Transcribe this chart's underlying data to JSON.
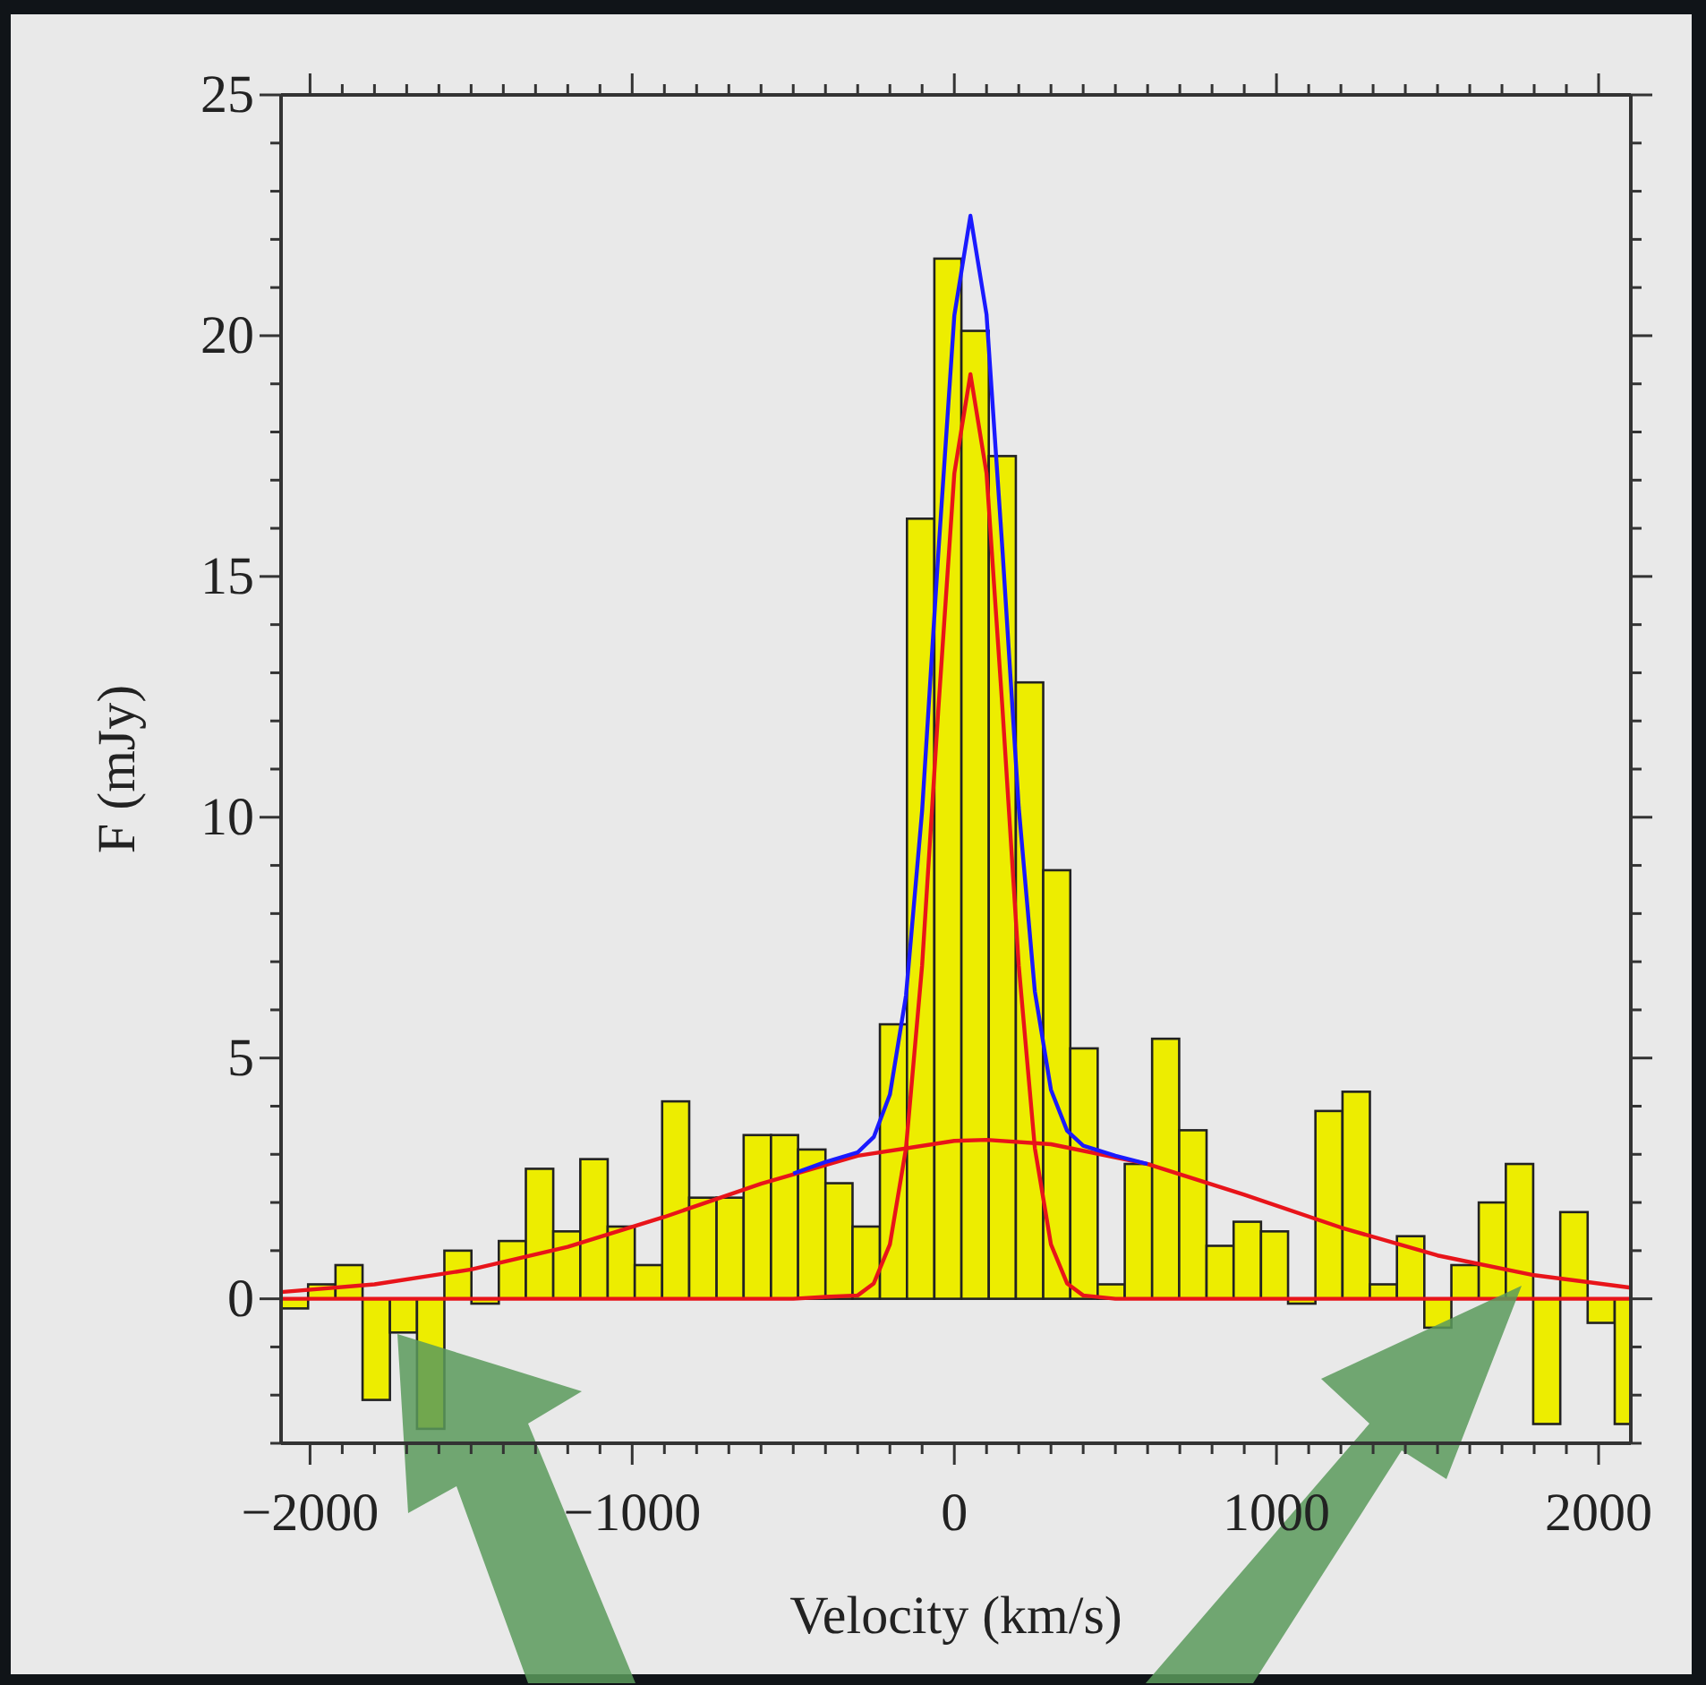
{
  "chart_data": {
    "type": "histogram",
    "xlabel": "Velocity (km/s)",
    "ylabel": "F (mJy)",
    "color": "#eded00",
    "bins": [
      -2090,
      -2006,
      -1921,
      -1837,
      -1752,
      -1668,
      -1583,
      -1499,
      -1414,
      -1330,
      -1245,
      -1161,
      -1076,
      -992,
      -907,
      -823,
      -738,
      -654,
      -569,
      -485,
      -400,
      -316,
      -231,
      -147,
      -62,
      22,
      107,
      191,
      276,
      360,
      445,
      529,
      614,
      698,
      783,
      867,
      952,
      1036,
      1121,
      1205,
      1290,
      1374,
      1459,
      1543,
      1628,
      1712,
      1797,
      1881,
      1966,
      2050,
      2100
    ],
    "values": [
      -0.2,
      0.3,
      0.7,
      -2.1,
      -0.7,
      -2.7,
      1.0,
      -0.1,
      1.2,
      2.7,
      1.4,
      2.9,
      1.5,
      0.7,
      4.1,
      2.1,
      2.1,
      3.4,
      3.4,
      3.1,
      2.4,
      1.5,
      5.7,
      16.2,
      21.6,
      20.1,
      17.5,
      12.8,
      8.9,
      5.2,
      0.3,
      2.8,
      5.4,
      3.5,
      1.1,
      1.6,
      1.4,
      -0.1,
      3.9,
      4.3,
      0.3,
      1.3,
      -0.6,
      0.7,
      2.0,
      2.8,
      -2.6,
      1.8,
      -0.5,
      -2.6
    ],
    "series": [
      {
        "type": "line",
        "color": "#e8141a",
        "x": [
          -2090,
          -500,
          -400,
          -300,
          -250,
          -200,
          -150,
          -100,
          -50,
          0,
          50,
          100,
          150,
          200,
          250,
          300,
          350,
          400,
          500,
          2100
        ],
        "values": [
          0,
          0,
          0.04,
          0.07,
          0.32,
          1.13,
          3.13,
          6.92,
          12.2,
          17.14,
          19.2,
          17.14,
          12.2,
          6.92,
          3.13,
          1.13,
          0.32,
          0.07,
          0,
          0
        ]
      },
      {
        "type": "line",
        "color": "#e8141a",
        "x": [
          -2090,
          -1800,
          -1500,
          -1200,
          -900,
          -600,
          -300,
          0,
          100,
          300,
          600,
          900,
          1200,
          1500,
          1800,
          2100
        ],
        "values": [
          0.14,
          0.3,
          0.61,
          1.08,
          1.7,
          2.39,
          2.97,
          3.28,
          3.3,
          3.21,
          2.8,
          2.16,
          1.48,
          0.9,
          0.49,
          0.23
        ]
      },
      {
        "type": "line",
        "color": "#1a1aff",
        "x": [
          -500,
          -400,
          -300,
          -250,
          -200,
          -150,
          -100,
          -50,
          0,
          50,
          100,
          150,
          200,
          250,
          300,
          350,
          400,
          500,
          600
        ],
        "values": [
          2.6,
          2.84,
          3.04,
          3.36,
          4.24,
          6.3,
          10.13,
          15.45,
          20.42,
          22.49,
          20.44,
          15.49,
          10.2,
          6.38,
          4.34,
          3.49,
          3.18,
          2.97,
          2.8
        ]
      }
    ],
    "xlim": [
      -2090,
      2100
    ],
    "xticks": [
      {
        "value": -2000,
        "label": "−2000"
      },
      {
        "value": -1900,
        "label": null
      },
      {
        "value": -1800,
        "label": null
      },
      {
        "value": -1700,
        "label": null
      },
      {
        "value": -1600,
        "label": null
      },
      {
        "value": -1500,
        "label": null
      },
      {
        "value": -1400,
        "label": null
      },
      {
        "value": -1300,
        "label": null
      },
      {
        "value": -1200,
        "label": null
      },
      {
        "value": -1100,
        "label": null
      },
      {
        "value": -1000,
        "label": "−1000"
      },
      {
        "value": -900,
        "label": null
      },
      {
        "value": -800,
        "label": null
      },
      {
        "value": -700,
        "label": null
      },
      {
        "value": -600,
        "label": null
      },
      {
        "value": -500,
        "label": null
      },
      {
        "value": -400,
        "label": null
      },
      {
        "value": -300,
        "label": null
      },
      {
        "value": -200,
        "label": null
      },
      {
        "value": -100,
        "label": null
      },
      0,
      {
        "value": 100,
        "label": null
      },
      {
        "value": 200,
        "label": null
      },
      {
        "value": 300,
        "label": null
      },
      {
        "value": 400,
        "label": null
      },
      {
        "value": 500,
        "label": null
      },
      {
        "value": 600,
        "label": null
      },
      {
        "value": 700,
        "label": null
      },
      {
        "value": 800,
        "label": null
      },
      {
        "value": 900,
        "label": null
      },
      1000,
      {
        "value": 1100,
        "label": null
      },
      {
        "value": 1200,
        "label": null
      },
      {
        "value": 1300,
        "label": null
      },
      {
        "value": 1400,
        "label": null
      },
      {
        "value": 1500,
        "label": null
      },
      {
        "value": 1600,
        "label": null
      },
      {
        "value": 1700,
        "label": null
      },
      {
        "value": 1800,
        "label": null
      },
      {
        "value": 1900,
        "label": null
      },
      2000
    ],
    "ylim": [
      -3,
      25
    ],
    "yticks": [
      {
        "value": -3,
        "label": null
      },
      {
        "value": -2,
        "label": null
      },
      {
        "value": -1,
        "label": null
      },
      0,
      {
        "value": 1,
        "label": null
      },
      {
        "value": 2,
        "label": null
      },
      {
        "value": 3,
        "label": null
      },
      {
        "value": 4,
        "label": null
      },
      5,
      {
        "value": 6,
        "label": null
      },
      {
        "value": 7,
        "label": null
      },
      {
        "value": 8,
        "label": null
      },
      {
        "value": 9,
        "label": null
      },
      10,
      {
        "value": 11,
        "label": null
      },
      {
        "value": 12,
        "label": null
      },
      {
        "value": 13,
        "label": null
      },
      {
        "value": 14,
        "label": null
      },
      15,
      {
        "value": 16,
        "label": null
      },
      {
        "value": 17,
        "label": null
      },
      {
        "value": 18,
        "label": null
      },
      {
        "value": 19,
        "label": null
      },
      20,
      {
        "value": 21,
        "label": null
      },
      {
        "value": 22,
        "label": null
      },
      {
        "value": 23,
        "label": null
      },
      {
        "value": 24,
        "label": null
      },
      25
    ]
  }
}
